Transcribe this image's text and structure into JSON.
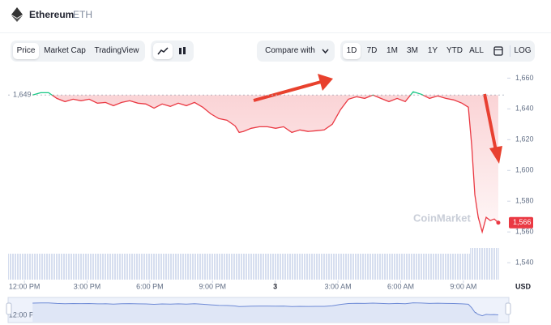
{
  "header": {
    "name": "Ethereum",
    "symbol": "ETH"
  },
  "toolbar": {
    "tabs": [
      "Price",
      "Market Cap",
      "TradingView"
    ],
    "compare": "Compare with",
    "ranges": [
      "1D",
      "7D",
      "1M",
      "3M",
      "1Y",
      "YTD",
      "ALL"
    ],
    "log": "LOG"
  },
  "chart_data": {
    "type": "line",
    "x": [
      0.39,
      0.78,
      1.16,
      1.55,
      1.94,
      2.33,
      2.71,
      3.1,
      3.49,
      3.88,
      4.26,
      4.65,
      5.04,
      5.43,
      5.81,
      6.2,
      6.59,
      6.98,
      7.36,
      7.75,
      8.14,
      8.53,
      8.91,
      9.3,
      9.69,
      10.08,
      10.27,
      10.47,
      10.85,
      11.24,
      11.63,
      12.02,
      12.4,
      12.79,
      13.18,
      13.57,
      13.95,
      14.34,
      14.73,
      15.12,
      15.5,
      15.89,
      16.28,
      16.67,
      17.05,
      17.44,
      17.83,
      18.22,
      18.6,
      18.99,
      19.38,
      19.77,
      20.16,
      20.54,
      20.93,
      21.24,
      21.4,
      21.55,
      21.71,
      21.9,
      22.09,
      22.29,
      22.48,
      22.67
    ],
    "series": [
      {
        "name": "Price",
        "color": "#ea3943",
        "color_above": "#16c784",
        "values": [
          1649,
          1650.5,
          1650.5,
          1646.8,
          1644.7,
          1646.3,
          1645.3,
          1646.3,
          1643.7,
          1644.2,
          1642.1,
          1644.2,
          1645.3,
          1643.7,
          1643.2,
          1640.5,
          1643.2,
          1641.6,
          1643.7,
          1642.1,
          1644.2,
          1641.1,
          1636.8,
          1633.7,
          1632.6,
          1628.9,
          1624.7,
          1625.3,
          1627.4,
          1628.4,
          1628.4,
          1627.4,
          1628.4,
          1624.7,
          1626.3,
          1625.3,
          1625.8,
          1626.3,
          1630,
          1639.5,
          1646.3,
          1647.9,
          1646.8,
          1649,
          1646.8,
          1644.7,
          1646.8,
          1644.7,
          1651.1,
          1649.5,
          1646.8,
          1648.4,
          1646.8,
          1645.8,
          1643.7,
          1641.1,
          1615.8,
          1584.2,
          1569.5,
          1560,
          1569.5,
          1567.4,
          1568.4,
          1566
        ]
      }
    ],
    "xlim": [
      -0.78,
      23.06
    ],
    "xticks": [
      {
        "value": 0,
        "label": "12:00 PM"
      },
      {
        "value": 3,
        "label": "3:00 PM"
      },
      {
        "value": 6,
        "label": "6:00 PM"
      },
      {
        "value": 9,
        "label": "9:00 PM"
      },
      {
        "value": 12,
        "label": "3"
      },
      {
        "value": 15,
        "label": "3:00 AM"
      },
      {
        "value": 18,
        "label": "6:00 AM"
      },
      {
        "value": 21,
        "label": "9:00 AM"
      }
    ],
    "ylim": [
      1529,
      1666
    ],
    "yticks": [
      {
        "value": 1540,
        "label": "1,540"
      },
      {
        "value": 1560,
        "label": "1,560"
      },
      {
        "value": 1580,
        "label": "1,580"
      },
      {
        "value": 1600,
        "label": "1,600"
      },
      {
        "value": 1620,
        "label": "1,620"
      },
      {
        "value": 1640,
        "label": "1,640"
      },
      {
        "value": 1660,
        "label": "1,660"
      }
    ],
    "reference_line": {
      "value": 1649,
      "label": "1,649"
    },
    "current_price": {
      "value": 1566,
      "label": "1,566"
    },
    "currency": "USD",
    "watermark": "CoinMarket"
  }
}
